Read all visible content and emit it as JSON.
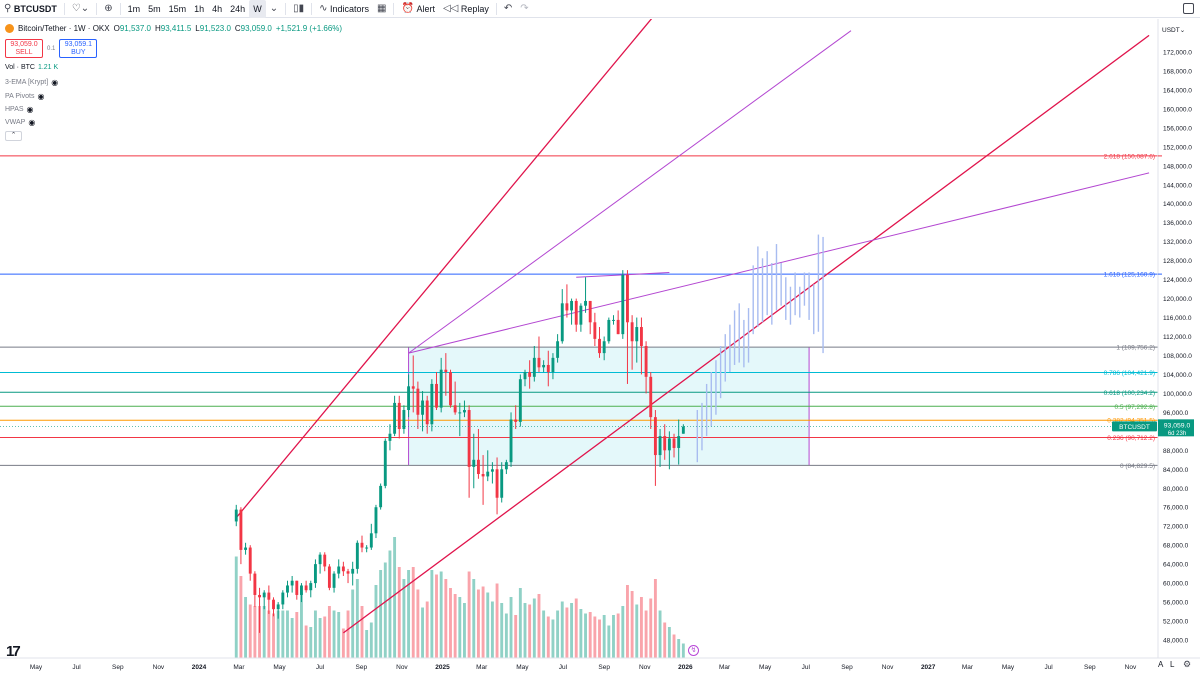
{
  "toolbar": {
    "symbol": "BTCUSDT",
    "intervals": [
      "1m",
      "5m",
      "15m",
      "1h",
      "4h",
      "24h",
      "W"
    ],
    "active_interval": "W",
    "indicators_label": "Indicators",
    "alert_label": "Alert",
    "replay_label": "Replay"
  },
  "header": {
    "title": "Bitcoin/Tether · 1W · OKX",
    "open_label": "O",
    "open": "91,537.0",
    "high_label": "H",
    "high": "93,411.5",
    "low_label": "L",
    "low": "91,523.0",
    "close_label": "C",
    "close": "93,059.0",
    "change": "+1,521.9 (+1.66%)"
  },
  "trade": {
    "sell_price": "93,059.0",
    "sell_label": "SELL",
    "spread": "0.1",
    "buy_price": "93,059.1",
    "buy_label": "BUY"
  },
  "indicators": {
    "vol_label": "Vol · BTC",
    "vol_value": "1.21 K",
    "items": [
      "3-EMA [Krypt]",
      "PA Pivots",
      "HPAS",
      "VWAP"
    ]
  },
  "scale": {
    "currency": "USDT",
    "last_symbol": "BTCUSDT",
    "last_price": "93,059.0",
    "countdown": "6d 23h"
  },
  "colors": {
    "up": "#089981",
    "down": "#f23645",
    "up_ghost": "#a8bcf0",
    "channel": "#e0144c",
    "pitchfork": "#b347d1",
    "fib_box": "#b2ebf2"
  },
  "chart_data": {
    "type": "candlestick",
    "title": "Bitcoin/Tether · 1W · OKX",
    "ylim": [
      46000,
      176000
    ],
    "y_ticks": [
      "48,000.0",
      "52,000.0",
      "56,000.0",
      "60,000.0",
      "64,000.0",
      "68,000.0",
      "72,000.0",
      "76,000.0",
      "80,000.0",
      "84,000.0",
      "88,000.0",
      "92,000.0",
      "96,000.0",
      "100,000.0",
      "104,000.0",
      "108,000.0",
      "112,000.0",
      "116,000.0",
      "120,000.0",
      "124,000.0",
      "128,000.0",
      "132,000.0",
      "136,000.0",
      "140,000.0",
      "144,000.0",
      "148,000.0",
      "152,000.0",
      "156,000.0",
      "160,000.0",
      "164,000.0",
      "168,000.0",
      "172,000.0"
    ],
    "x_ticks": [
      {
        "label": "May",
        "date": "2023-05-01"
      },
      {
        "label": "Jul",
        "date": "2023-07-01"
      },
      {
        "label": "Sep",
        "date": "2023-09-01"
      },
      {
        "label": "Nov",
        "date": "2023-11-01"
      },
      {
        "label": "2024",
        "date": "2024-01-01",
        "bold": true
      },
      {
        "label": "Mar",
        "date": "2024-03-01"
      },
      {
        "label": "May",
        "date": "2024-05-01"
      },
      {
        "label": "Jul",
        "date": "2024-07-01"
      },
      {
        "label": "Sep",
        "date": "2024-09-01"
      },
      {
        "label": "Nov",
        "date": "2024-11-01"
      },
      {
        "label": "2025",
        "date": "2025-01-01",
        "bold": true
      },
      {
        "label": "Mar",
        "date": "2025-03-01"
      },
      {
        "label": "May",
        "date": "2025-05-01"
      },
      {
        "label": "Jul",
        "date": "2025-07-01"
      },
      {
        "label": "Sep",
        "date": "2025-09-01"
      },
      {
        "label": "Nov",
        "date": "2025-11-01"
      },
      {
        "label": "2026",
        "date": "2026-01-01",
        "bold": true
      },
      {
        "label": "Mar",
        "date": "2026-03-01"
      },
      {
        "label": "May",
        "date": "2026-05-01"
      },
      {
        "label": "Jul",
        "date": "2026-07-01"
      },
      {
        "label": "Sep",
        "date": "2026-09-01"
      },
      {
        "label": "Nov",
        "date": "2026-11-01"
      },
      {
        "label": "2027",
        "date": "2027-01-01",
        "bold": true
      },
      {
        "label": "Mar",
        "date": "2027-03-01"
      },
      {
        "label": "May",
        "date": "2027-05-01"
      },
      {
        "label": "Jul",
        "date": "2027-07-01"
      },
      {
        "label": "Sep",
        "date": "2027-09-01"
      },
      {
        "label": "Nov",
        "date": "2027-11-01"
      }
    ],
    "fib_levels": [
      {
        "label": "0 (84,829.5)",
        "value": 84829.5,
        "color": "#787b86"
      },
      {
        "label": "0.236 (90,712.2)",
        "value": 90712.2,
        "color": "#f23645"
      },
      {
        "label": "0.382 (94,351.5)",
        "value": 94351.5,
        "color": "#ff9800"
      },
      {
        "label": "0.5 (97,292.8)",
        "value": 97292.8,
        "color": "#4caf50"
      },
      {
        "label": "0.618 (100,234.2)",
        "value": 100234.2,
        "color": "#089981"
      },
      {
        "label": "0.786 (104,421.9)",
        "value": 104421.9,
        "color": "#00bcd4"
      },
      {
        "label": "1 (109,756.2)",
        "value": 109756.2,
        "color": "#787b86"
      },
      {
        "label": "1.618 (125,160.9)",
        "value": 125160.9,
        "color": "#2962ff"
      },
      {
        "label": "2.618 (150,087.6)",
        "value": 150087.6,
        "color": "#f23645"
      }
    ],
    "fib_box": {
      "start": "2024-11-11",
      "end": "2026-07-06",
      "top": 109756.2,
      "bottom": 84829.5
    },
    "trendlines": [
      {
        "kind": "channel",
        "from": {
          "date": "2024-02-26",
          "price": 73800
        },
        "to": {
          "date": "2025-11-17",
          "price": 180000
        }
      },
      {
        "kind": "channel",
        "from": {
          "date": "2024-08-05",
          "price": 49500
        },
        "to": {
          "date": "2027-11-29",
          "price": 175500
        }
      },
      {
        "kind": "pitchfork",
        "from": {
          "date": "2024-11-11",
          "price": 108500
        },
        "to": {
          "date": "2026-09-07",
          "price": 176500
        }
      },
      {
        "kind": "pitchfork",
        "from": {
          "date": "2024-11-11",
          "price": 108500
        },
        "to": {
          "date": "2027-11-29",
          "price": 146500
        }
      },
      {
        "kind": "pitchfork",
        "from": {
          "date": "2025-07-21",
          "price": 124500
        },
        "to": {
          "date": "2025-12-08",
          "price": 125500
        }
      }
    ],
    "candles": [
      [
        73000,
        76500,
        72000,
        75500,
        0.69
      ],
      [
        75500,
        76000,
        64000,
        67000,
        0.56
      ],
      [
        67000,
        68500,
        66000,
        67500,
        0.42
      ],
      [
        67500,
        68000,
        60500,
        62000,
        0.37
      ],
      [
        62000,
        62500,
        55000,
        57500,
        0.36
      ],
      [
        57500,
        59000,
        49500,
        57000,
        0.36
      ],
      [
        57000,
        58500,
        54500,
        58000,
        0.36
      ],
      [
        58000,
        59500,
        53500,
        56500,
        0.33
      ],
      [
        56500,
        57000,
        53000,
        54500,
        0.31
      ],
      [
        54500,
        56000,
        52500,
        55500,
        0.33
      ],
      [
        55500,
        58500,
        54500,
        58000,
        0.33
      ],
      [
        58000,
        60500,
        57000,
        59500,
        0.33
      ],
      [
        59500,
        61500,
        58000,
        60500,
        0.28
      ],
      [
        60500,
        60500,
        56500,
        57500,
        0.32
      ],
      [
        57500,
        60000,
        56000,
        59500,
        0.45
      ],
      [
        59500,
        60500,
        58000,
        58500,
        0.23
      ],
      [
        58500,
        60500,
        57000,
        60000,
        0.22
      ],
      [
        60000,
        65000,
        59000,
        64000,
        0.33
      ],
      [
        64000,
        66500,
        62000,
        66000,
        0.28
      ],
      [
        66000,
        66500,
        62500,
        63500,
        0.29
      ],
      [
        63500,
        64000,
        58500,
        59000,
        0.36
      ],
      [
        59000,
        62500,
        58000,
        62000,
        0.33
      ],
      [
        62000,
        65000,
        61000,
        63500,
        0.32
      ],
      [
        63500,
        64500,
        61500,
        62500,
        0.21
      ],
      [
        62500,
        63000,
        60000,
        62000,
        0.33
      ],
      [
        62000,
        64500,
        59500,
        63000,
        0.47
      ],
      [
        63000,
        69000,
        62000,
        68500,
        0.54
      ],
      [
        68500,
        70000,
        66500,
        67500,
        0.36
      ],
      [
        67500,
        68000,
        66500,
        67500,
        0.2
      ],
      [
        67500,
        72500,
        67000,
        70500,
        0.25
      ],
      [
        70500,
        76500,
        69500,
        76000,
        0.5
      ],
      [
        76000,
        81000,
        75500,
        80500,
        0.6
      ],
      [
        80500,
        90500,
        80000,
        90000,
        0.65
      ],
      [
        90000,
        93500,
        88000,
        91500,
        0.73
      ],
      [
        91500,
        99500,
        91000,
        98000,
        0.82
      ],
      [
        98000,
        99500,
        90500,
        92500,
        0.62
      ],
      [
        92500,
        97500,
        91500,
        96500,
        0.54
      ],
      [
        96500,
        104000,
        95000,
        101500,
        0.6
      ],
      [
        101500,
        108000,
        96000,
        101000,
        0.62
      ],
      [
        101000,
        102500,
        92500,
        95500,
        0.47
      ],
      [
        95500,
        100500,
        92000,
        98500,
        0.35
      ],
      [
        98500,
        99500,
        91500,
        93500,
        0.39
      ],
      [
        93500,
        103000,
        92000,
        102000,
        0.6
      ],
      [
        102000,
        104500,
        96500,
        97000,
        0.57
      ],
      [
        97000,
        107500,
        96000,
        105000,
        0.59
      ],
      [
        105000,
        108500,
        99500,
        104500,
        0.54
      ],
      [
        104500,
        105000,
        97000,
        97500,
        0.48
      ],
      [
        97500,
        102500,
        95500,
        96000,
        0.44
      ],
      [
        96000,
        98000,
        91000,
        96000,
        0.42
      ],
      [
        96000,
        98500,
        95000,
        96500,
        0.38
      ],
      [
        96500,
        97500,
        78000,
        84500,
        0.59
      ],
      [
        84500,
        91500,
        80000,
        86000,
        0.54
      ],
      [
        86000,
        92500,
        82000,
        83000,
        0.47
      ],
      [
        83000,
        87000,
        76500,
        82500,
        0.49
      ],
      [
        82500,
        88000,
        81500,
        83500,
        0.45
      ],
      [
        83500,
        85500,
        81000,
        84000,
        0.39
      ],
      [
        84000,
        86500,
        74500,
        78000,
        0.51
      ],
      [
        78000,
        85500,
        77000,
        84000,
        0.38
      ],
      [
        84000,
        86000,
        83000,
        85500,
        0.31
      ],
      [
        85500,
        96000,
        84500,
        94500,
        0.42
      ],
      [
        94500,
        97500,
        92500,
        94000,
        0.3
      ],
      [
        94000,
        104000,
        93000,
        103000,
        0.48
      ],
      [
        103000,
        105000,
        101500,
        104500,
        0.38
      ],
      [
        104500,
        107000,
        101000,
        103500,
        0.37
      ],
      [
        103500,
        110000,
        102500,
        107500,
        0.41
      ],
      [
        107500,
        112000,
        104500,
        105500,
        0.44
      ],
      [
        105500,
        107000,
        104500,
        106000,
        0.33
      ],
      [
        106000,
        109000,
        101500,
        104500,
        0.29
      ],
      [
        104500,
        108500,
        103000,
        107500,
        0.27
      ],
      [
        107500,
        112500,
        106500,
        111000,
        0.33
      ],
      [
        111000,
        122000,
        110500,
        119000,
        0.39
      ],
      [
        119000,
        123000,
        116000,
        117500,
        0.35
      ],
      [
        117500,
        120000,
        114500,
        119500,
        0.38
      ],
      [
        119500,
        120000,
        113000,
        114500,
        0.41
      ],
      [
        114500,
        119000,
        113000,
        118500,
        0.34
      ],
      [
        118500,
        124500,
        117000,
        119500,
        0.31
      ],
      [
        119500,
        119500,
        112500,
        115000,
        0.32
      ],
      [
        115000,
        117000,
        110000,
        111500,
        0.29
      ],
      [
        111500,
        114000,
        107500,
        108500,
        0.27
      ],
      [
        108500,
        112000,
        107000,
        111000,
        0.3
      ],
      [
        111000,
        116000,
        110500,
        115500,
        0.23
      ],
      [
        115500,
        116500,
        114500,
        115500,
        0.3
      ],
      [
        115500,
        117500,
        112500,
        112500,
        0.31
      ],
      [
        112500,
        126000,
        111500,
        125000,
        0.36
      ],
      [
        125000,
        126000,
        102000,
        115000,
        0.5
      ],
      [
        115000,
        116500,
        105000,
        111000,
        0.46
      ],
      [
        111000,
        116000,
        106500,
        114000,
        0.37
      ],
      [
        114000,
        116000,
        104000,
        110000,
        0.42
      ],
      [
        110000,
        111000,
        100000,
        103500,
        0.33
      ],
      [
        103500,
        104500,
        92500,
        95000,
        0.41
      ],
      [
        95000,
        96500,
        80500,
        87000,
        0.54
      ],
      [
        87000,
        92500,
        84500,
        91000,
        0.33
      ],
      [
        91000,
        93500,
        86000,
        88000,
        0.25
      ],
      [
        88000,
        92000,
        84000,
        90500,
        0.22
      ],
      [
        90500,
        91500,
        86500,
        88500,
        0.17
      ],
      [
        88500,
        94500,
        85000,
        91000,
        0.14
      ],
      [
        91500,
        93500,
        91500,
        93000,
        0.11
      ]
    ],
    "projection": [
      {
        "date": "2026-01-19",
        "low": 85500,
        "high": 96500
      },
      {
        "date": "2026-01-26",
        "low": 88000,
        "high": 98000
      },
      {
        "date": "2026-02-02",
        "low": 91000,
        "high": 102000
      },
      {
        "date": "2026-02-09",
        "low": 93000,
        "high": 104500
      },
      {
        "date": "2026-02-16",
        "low": 95500,
        "high": 107000
      },
      {
        "date": "2026-02-23",
        "low": 99000,
        "high": 110000
      },
      {
        "date": "2026-03-02",
        "low": 102500,
        "high": 112500
      },
      {
        "date": "2026-03-09",
        "low": 104500,
        "high": 114500
      },
      {
        "date": "2026-03-16",
        "low": 106000,
        "high": 117500
      },
      {
        "date": "2026-03-23",
        "low": 106500,
        "high": 119000
      },
      {
        "date": "2026-03-30",
        "low": 105500,
        "high": 115500
      },
      {
        "date": "2026-04-06",
        "low": 106500,
        "high": 118000
      },
      {
        "date": "2026-04-13",
        "low": 112500,
        "high": 127000
      },
      {
        "date": "2026-04-20",
        "low": 114000,
        "high": 131000
      },
      {
        "date": "2026-04-27",
        "low": 115000,
        "high": 128500
      },
      {
        "date": "2026-05-04",
        "low": 116500,
        "high": 130000
      },
      {
        "date": "2026-05-11",
        "low": 114500,
        "high": 127500
      },
      {
        "date": "2026-05-18",
        "low": 117500,
        "high": 131500
      },
      {
        "date": "2026-05-25",
        "low": 118500,
        "high": 127500
      },
      {
        "date": "2026-06-01",
        "low": 115500,
        "high": 124500
      },
      {
        "date": "2026-06-08",
        "low": 114500,
        "high": 122500
      },
      {
        "date": "2026-06-15",
        "low": 116500,
        "high": 125500
      },
      {
        "date": "2026-06-22",
        "low": 116000,
        "high": 122500
      },
      {
        "date": "2026-06-29",
        "low": 118500,
        "high": 125500
      },
      {
        "date": "2026-07-06",
        "low": 115500,
        "high": 125500
      },
      {
        "date": "2026-07-13",
        "low": 112500,
        "high": 123000
      },
      {
        "date": "2026-07-20",
        "low": 113000,
        "high": 133500
      },
      {
        "date": "2026-07-27",
        "low": 108500,
        "high": 133000
      }
    ]
  }
}
